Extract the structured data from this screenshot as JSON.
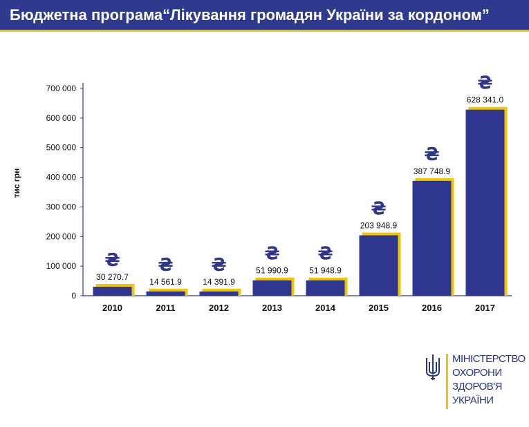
{
  "header": {
    "title": "Бюджетна програма“Лікування громадян України  за кордоном”"
  },
  "chart_data": {
    "type": "bar",
    "title": "Бюджетна програма“Лікування громадян України  за кордоном”",
    "ylabel": "тис грн",
    "xlabel": "",
    "categories": [
      "2010",
      "2011",
      "2012",
      "2013",
      "2014",
      "2015",
      "2016",
      "2017"
    ],
    "values": [
      30270.7,
      14561.9,
      14391.9,
      51990.9,
      51948.9,
      203948.9,
      387748.9,
      628341.0
    ],
    "value_labels": [
      "30 270.7",
      "14 561.9",
      "14 391.9",
      "51 990.9",
      "51 948.9",
      "203 948.9",
      "387 748.9",
      "628 341.0"
    ],
    "ylim": [
      0,
      700000
    ],
    "yticks": [
      0,
      100000,
      200000,
      300000,
      400000,
      500000,
      600000,
      700000
    ],
    "ytick_labels": [
      "0",
      "100 000",
      "200 000",
      "300 000",
      "400 000",
      "500 000",
      "600 000",
      "700 000"
    ],
    "currency_symbol": "₴",
    "grid": false,
    "legend": "none",
    "colors": {
      "bar": "#2e3690",
      "bar_shadow": "#f2c500",
      "axis": "#2e3690",
      "text": "#111111"
    }
  },
  "logo": {
    "lines": [
      "МІНІСТЕРСТВО",
      "ОХОРОНИ",
      "ЗДОРОВ'Я",
      "УКРАЇНИ"
    ],
    "icon": "trident-icon"
  }
}
